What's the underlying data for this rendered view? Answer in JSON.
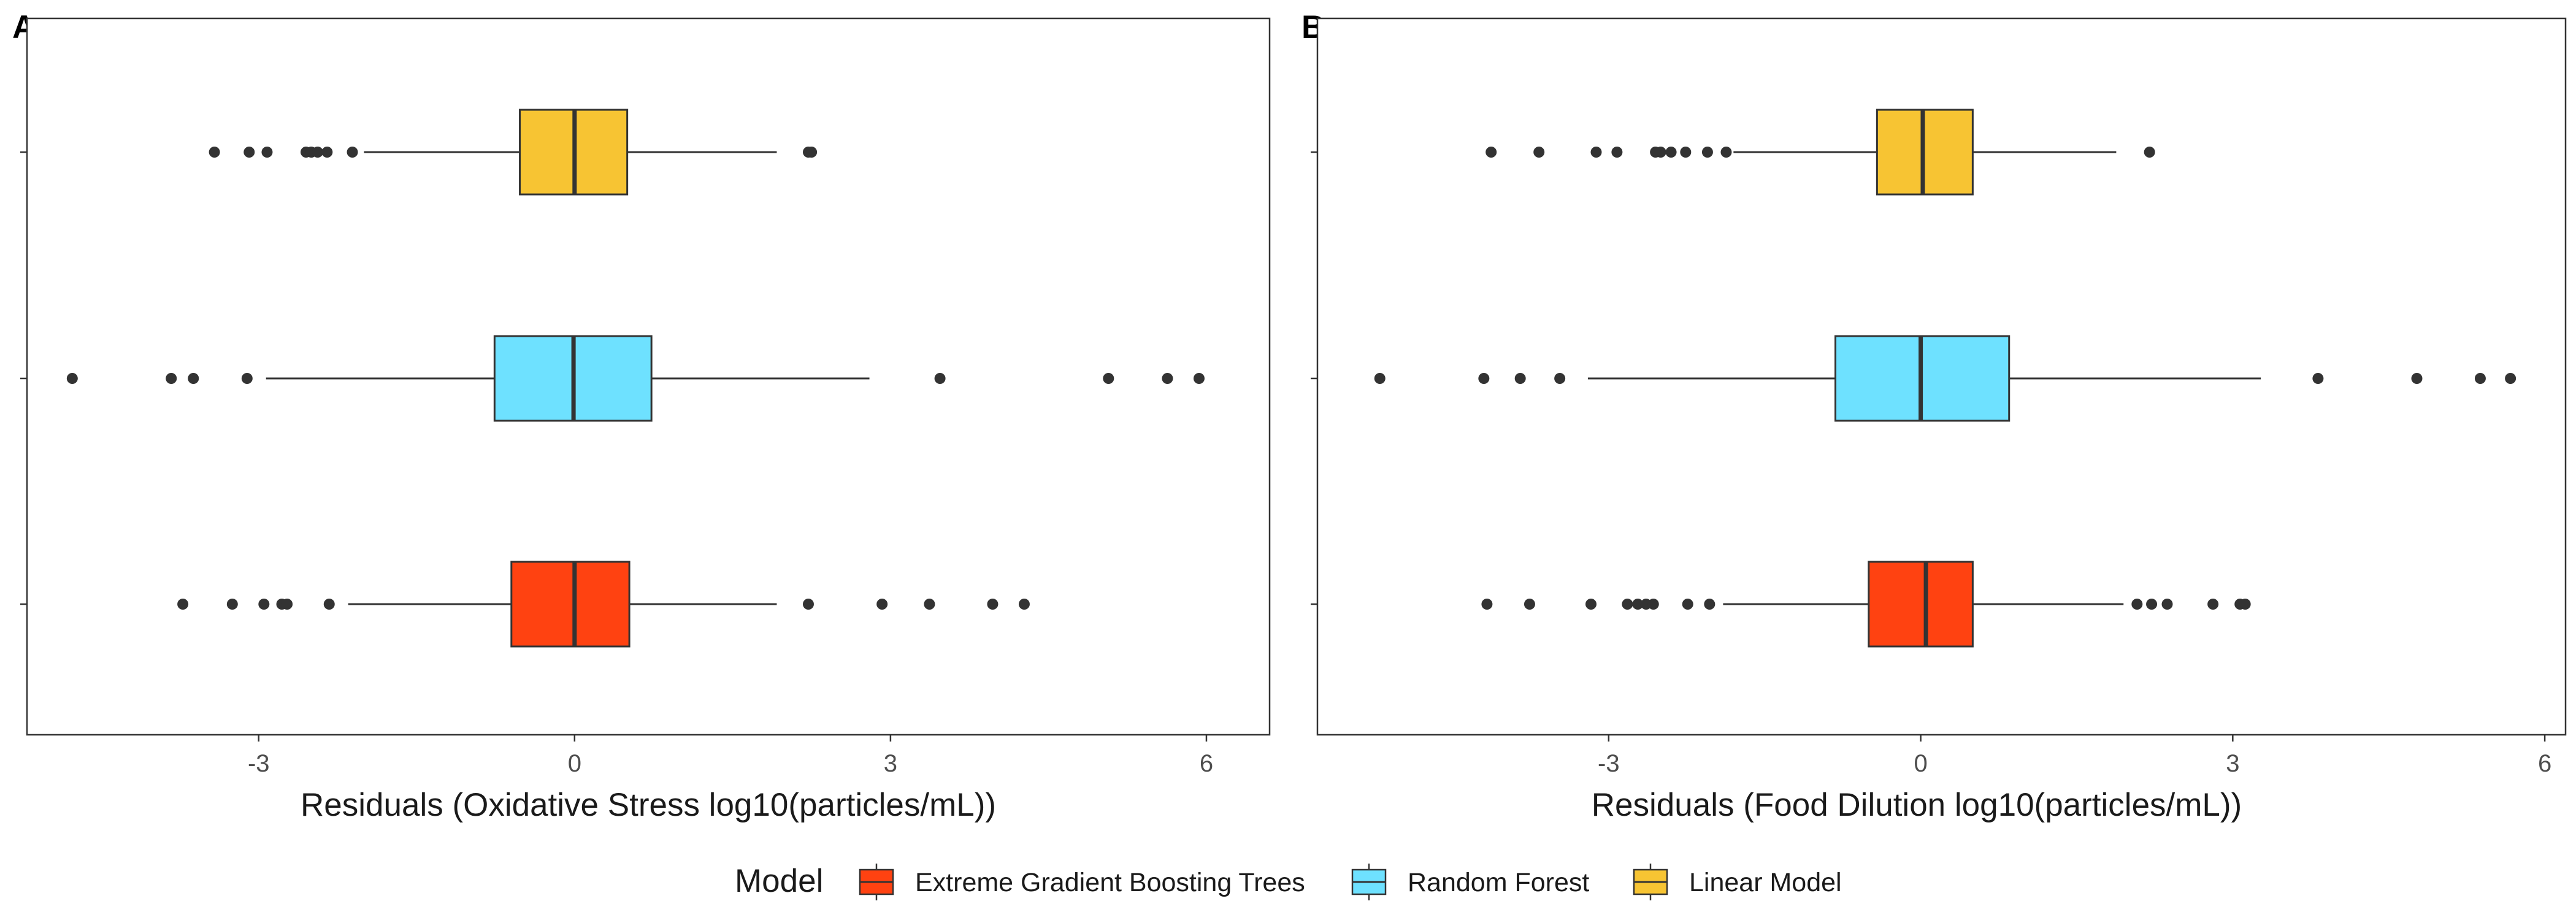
{
  "chart_data": [
    {
      "type": "boxplot",
      "panel": "A",
      "orientation": "horizontal",
      "xlabel": "Residuals (Oxidative Stress log10(particles/mL))",
      "ylabel": "",
      "xlim": [
        -5.2,
        6.6
      ],
      "xticks": [
        -3,
        0,
        3,
        6
      ],
      "xtick_labels": [
        "-3",
        "0",
        "3",
        "6"
      ],
      "grid": true,
      "series": [
        {
          "name": "Extreme Gradient Boosting Trees",
          "color": "#FF4211",
          "q1": -0.6,
          "median": 0.0,
          "q3": 0.52,
          "whisker_low": -2.15,
          "whisker_high": 1.92,
          "outliers": [
            -3.72,
            -3.25,
            -2.95,
            -2.78,
            -2.73,
            -2.33,
            2.22,
            2.92,
            3.37,
            3.97,
            4.27
          ]
        },
        {
          "name": "Random Forest",
          "color": "#6EE1FF",
          "q1": -0.76,
          "median": -0.01,
          "q3": 0.73,
          "whisker_low": -2.93,
          "whisker_high": 2.8,
          "outliers": [
            -4.77,
            -3.83,
            -3.62,
            -3.11,
            3.47,
            5.07,
            5.63,
            5.93
          ]
        },
        {
          "name": "Linear Model",
          "color": "#F7C433",
          "q1": -0.52,
          "median": 0.0,
          "q3": 0.5,
          "whisker_low": -2.0,
          "whisker_high": 1.92,
          "outliers": [
            -3.42,
            -3.09,
            -2.92,
            -2.55,
            -2.5,
            -2.44,
            -2.35,
            -2.11,
            2.22,
            2.25
          ]
        }
      ]
    },
    {
      "type": "boxplot",
      "panel": "B",
      "orientation": "horizontal",
      "xlabel": "Residuals (Food Dilution log10(particles/mL))",
      "ylabel": "",
      "xlim": [
        -5.8,
        6.2
      ],
      "xticks": [
        -3,
        0,
        3,
        6
      ],
      "xtick_labels": [
        "-3",
        "0",
        "3",
        "6"
      ],
      "grid": true,
      "series": [
        {
          "name": "Extreme Gradient Boosting Trees",
          "color": "#FF4211",
          "q1": -0.5,
          "median": 0.05,
          "q3": 0.5,
          "whisker_low": -1.9,
          "whisker_high": 1.95,
          "outliers": [
            -4.17,
            -3.76,
            -3.17,
            -2.82,
            -2.72,
            -2.64,
            -2.57,
            -2.24,
            -2.03,
            2.08,
            2.22,
            2.37,
            2.81,
            3.07,
            3.12
          ]
        },
        {
          "name": "Random Forest",
          "color": "#6EE1FF",
          "q1": -0.82,
          "median": 0.0,
          "q3": 0.85,
          "whisker_low": -3.2,
          "whisker_high": 3.27,
          "outliers": [
            -5.2,
            -4.2,
            -3.85,
            -3.47,
            3.82,
            4.77,
            5.38,
            5.67
          ]
        },
        {
          "name": "Linear Model",
          "color": "#F7C433",
          "q1": -0.42,
          "median": 0.02,
          "q3": 0.5,
          "whisker_low": -1.8,
          "whisker_high": 1.88,
          "outliers": [
            -4.13,
            -3.67,
            -3.12,
            -2.92,
            -2.55,
            -2.5,
            -2.4,
            -2.26,
            -2.05,
            -1.87,
            2.2
          ]
        }
      ]
    }
  ],
  "legend": {
    "title": "Model",
    "position": "bottom",
    "items": [
      {
        "label": "Extreme Gradient Boosting Trees",
        "color": "#FF4211"
      },
      {
        "label": "Random Forest",
        "color": "#6EE1FF"
      },
      {
        "label": "Linear Model",
        "color": "#F7C433"
      }
    ]
  }
}
